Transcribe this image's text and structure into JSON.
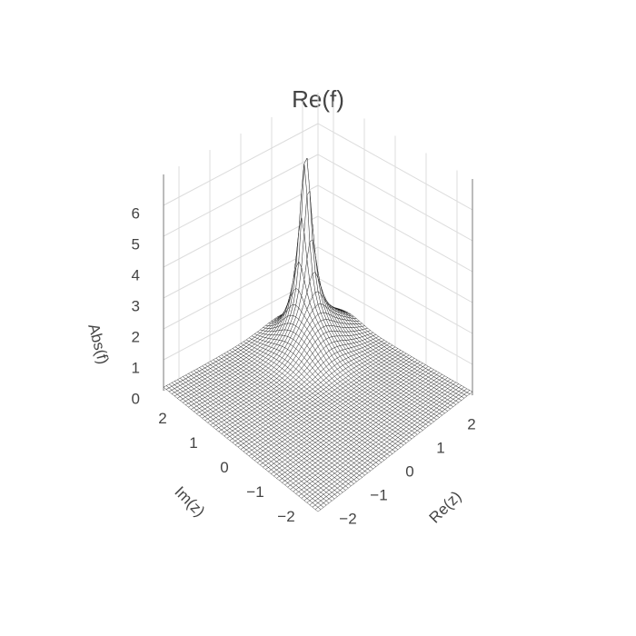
{
  "chart_data": {
    "type": "surface",
    "title": "Re(f)",
    "xlabel": "Re(z)",
    "ylabel": "Im(z)",
    "zlabel": "Abs(f)",
    "xlim": [
      -2.5,
      2.5
    ],
    "ylim": [
      -2.5,
      2.5
    ],
    "zlim": [
      0,
      7
    ],
    "x_ticks": [
      "−2",
      "−1",
      "0",
      "1",
      "2"
    ],
    "y_ticks": [
      "−2",
      "−1",
      "0",
      "1",
      "2"
    ],
    "z_ticks": [
      "0",
      "1",
      "2",
      "3",
      "4",
      "5",
      "6"
    ],
    "surface_points": [
      {
        "x": -2.5,
        "y": -2.5,
        "z": 0.05
      },
      {
        "x": 2.5,
        "y": -2.5,
        "z": 0.1
      },
      {
        "x": -2.5,
        "y": 2.5,
        "z": 0.1
      },
      {
        "x": 0,
        "y": 0,
        "z": 0.3
      },
      {
        "x": 1,
        "y": 1.2,
        "z": 0.9
      },
      {
        "x": 1.3,
        "y": 1.7,
        "z": 6.3
      },
      {
        "x": 2,
        "y": 1.5,
        "z": 0.5
      },
      {
        "x": 2.5,
        "y": 2.5,
        "z": 0.15
      }
    ],
    "color": "#000000"
  }
}
